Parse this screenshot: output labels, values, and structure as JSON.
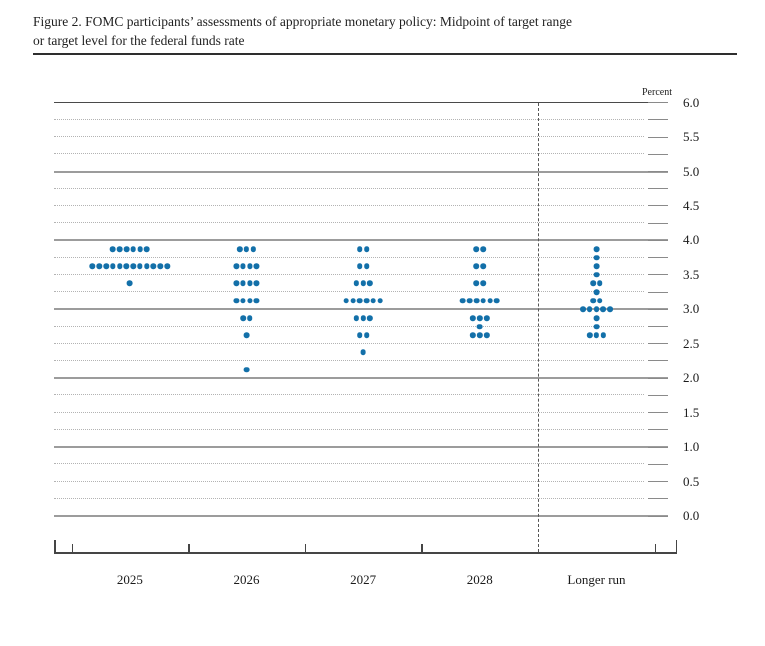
{
  "figure": {
    "title_line1": "Figure 2. FOMC participants’ assessments of appropriate monetary policy: Midpoint of target range",
    "title_line2": "or target level for the federal funds rate"
  },
  "chart_data": {
    "type": "scatter",
    "subtype": "fomc_dot_plot",
    "title": "Figure 2. FOMC participants’ assessments of appropriate monetary policy: Midpoint of target range or target level for the federal funds rate",
    "ylabel": "Percent",
    "unit_label": "Percent",
    "ylim": [
      0.0,
      6.0
    ],
    "gridline_step": 0.25,
    "tick_label_step": 0.5,
    "y_tick_labels": [
      "6.0",
      "5.5",
      "5.0",
      "4.5",
      "4.0",
      "3.5",
      "3.0",
      "2.5",
      "2.0",
      "1.5",
      "1.0",
      "0.5",
      "0.0"
    ],
    "categories": [
      "2025",
      "2026",
      "2027",
      "2028",
      "Longer run"
    ],
    "legend_position": "none",
    "grid": "solid lines at integers, dotted lines at quarter points, dashed vertical separator before Longer run",
    "dot_color": "#1370a9",
    "colors": {
      "dot": "#1370a9",
      "solid_gridline": "#9c9c9c",
      "dotted_gridline": "#b3b3b3",
      "frame": "#454545"
    },
    "series": [
      {
        "category": "2025",
        "dots": [
          {
            "rate": 3.875,
            "count": 6
          },
          {
            "rate": 3.625,
            "count": 12
          },
          {
            "rate": 3.375,
            "count": 1
          }
        ]
      },
      {
        "category": "2026",
        "dots": [
          {
            "rate": 3.875,
            "count": 3
          },
          {
            "rate": 3.625,
            "count": 4
          },
          {
            "rate": 3.375,
            "count": 4
          },
          {
            "rate": 3.125,
            "count": 4
          },
          {
            "rate": 2.875,
            "count": 2
          },
          {
            "rate": 2.625,
            "count": 1
          },
          {
            "rate": 2.125,
            "count": 1
          }
        ]
      },
      {
        "category": "2027",
        "dots": [
          {
            "rate": 3.875,
            "count": 2
          },
          {
            "rate": 3.625,
            "count": 2
          },
          {
            "rate": 3.375,
            "count": 3
          },
          {
            "rate": 3.125,
            "count": 6
          },
          {
            "rate": 2.875,
            "count": 3
          },
          {
            "rate": 2.625,
            "count": 2
          },
          {
            "rate": 2.375,
            "count": 1
          }
        ]
      },
      {
        "category": "2028",
        "dots": [
          {
            "rate": 3.875,
            "count": 2
          },
          {
            "rate": 3.625,
            "count": 2
          },
          {
            "rate": 3.375,
            "count": 2
          },
          {
            "rate": 3.125,
            "count": 6
          },
          {
            "rate": 2.875,
            "count": 3
          },
          {
            "rate": 2.75,
            "count": 1
          },
          {
            "rate": 2.625,
            "count": 3
          }
        ]
      },
      {
        "category": "Longer run",
        "dots": [
          {
            "rate": 3.875,
            "count": 1
          },
          {
            "rate": 3.75,
            "count": 1
          },
          {
            "rate": 3.625,
            "count": 1
          },
          {
            "rate": 3.5,
            "count": 1
          },
          {
            "rate": 3.375,
            "count": 2
          },
          {
            "rate": 3.25,
            "count": 1
          },
          {
            "rate": 3.125,
            "count": 2
          },
          {
            "rate": 3.0,
            "count": 5
          },
          {
            "rate": 2.875,
            "count": 1
          },
          {
            "rate": 2.75,
            "count": 1
          },
          {
            "rate": 2.625,
            "count": 3
          }
        ]
      }
    ]
  }
}
